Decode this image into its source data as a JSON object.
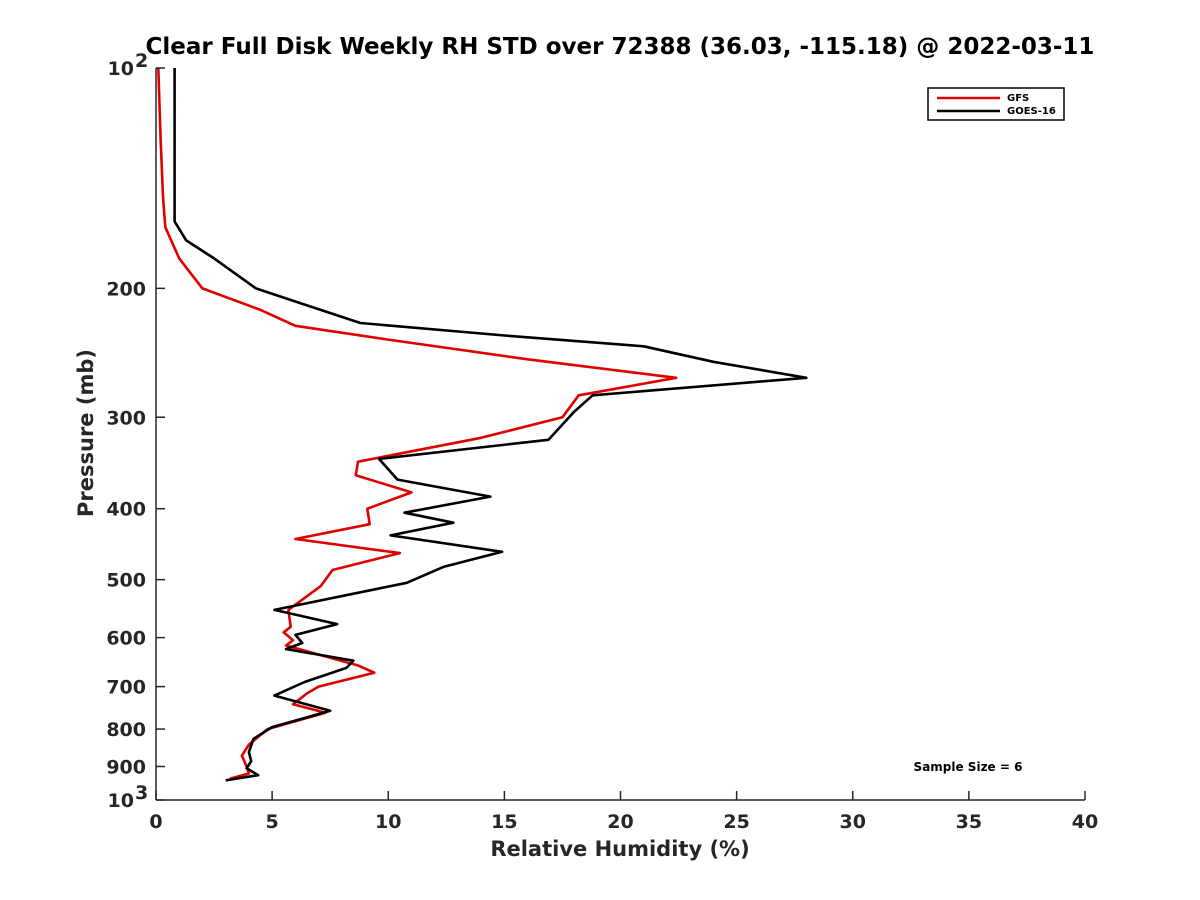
{
  "chart_data": {
    "type": "line",
    "title": "Clear Full Disk Weekly RH STD over 72388 (36.03, -115.18) @ 2022-03-11",
    "xlabel": "Relative Humidity (%)",
    "ylabel": "Pressure (mb)",
    "xlim": [
      0,
      40
    ],
    "ylim": [
      100,
      1000
    ],
    "y_scale": "log",
    "y_reversed": true,
    "x_ticks": [
      "0",
      "5",
      "10",
      "15",
      "20",
      "25",
      "30",
      "35",
      "40"
    ],
    "y_ticks": [
      {
        "value": 100,
        "label": "10",
        "sup": "2"
      },
      {
        "value": 200,
        "label": "200"
      },
      {
        "value": 300,
        "label": "300"
      },
      {
        "value": 400,
        "label": "400"
      },
      {
        "value": 500,
        "label": "500"
      },
      {
        "value": 600,
        "label": "600"
      },
      {
        "value": 700,
        "label": "700"
      },
      {
        "value": 800,
        "label": "800"
      },
      {
        "value": 900,
        "label": "900"
      },
      {
        "value": 1000,
        "label": "10",
        "sup": "3"
      }
    ],
    "legend_position": "top-right",
    "grid": false,
    "annotation": "Sample Size = 6",
    "series": [
      {
        "name": "GFS",
        "color": "#e00000",
        "points": [
          [
            0.1,
            100
          ],
          [
            0.2,
            125
          ],
          [
            0.3,
            150
          ],
          [
            0.4,
            165
          ],
          [
            1.0,
            182
          ],
          [
            2.0,
            200
          ],
          [
            4.5,
            214
          ],
          [
            6.0,
            225
          ],
          [
            10.0,
            235
          ],
          [
            16.0,
            250
          ],
          [
            22.4,
            265
          ],
          [
            18.2,
            280
          ],
          [
            17.5,
            300
          ],
          [
            14.0,
            320
          ],
          [
            8.7,
            345
          ],
          [
            8.6,
            360
          ],
          [
            11.0,
            380
          ],
          [
            9.1,
            400
          ],
          [
            9.2,
            420
          ],
          [
            6.0,
            440
          ],
          [
            10.5,
            460
          ],
          [
            7.6,
            485
          ],
          [
            7.1,
            510
          ],
          [
            5.7,
            550
          ],
          [
            5.8,
            580
          ],
          [
            5.5,
            590
          ],
          [
            5.9,
            605
          ],
          [
            5.6,
            615
          ],
          [
            8.7,
            655
          ],
          [
            9.4,
            670
          ],
          [
            7.0,
            700
          ],
          [
            6.5,
            715
          ],
          [
            5.9,
            740
          ],
          [
            7.3,
            760
          ],
          [
            4.8,
            800
          ],
          [
            4.0,
            840
          ],
          [
            3.7,
            870
          ],
          [
            3.9,
            900
          ],
          [
            4.0,
            920
          ],
          [
            3.2,
            935
          ]
        ]
      },
      {
        "name": "GOES-16",
        "color": "#000000",
        "points": [
          [
            0.8,
            100
          ],
          [
            0.8,
            125
          ],
          [
            0.8,
            150
          ],
          [
            0.8,
            162
          ],
          [
            1.3,
            172
          ],
          [
            2.5,
            182
          ],
          [
            4.3,
            200
          ],
          [
            6.5,
            211
          ],
          [
            8.8,
            223
          ],
          [
            15.0,
            232
          ],
          [
            21.0,
            240
          ],
          [
            24.0,
            252
          ],
          [
            28.0,
            265
          ],
          [
            18.8,
            280
          ],
          [
            18.0,
            295
          ],
          [
            16.9,
            322
          ],
          [
            9.6,
            342
          ],
          [
            10.4,
            365
          ],
          [
            14.4,
            385
          ],
          [
            10.7,
            405
          ],
          [
            12.8,
            418
          ],
          [
            10.1,
            435
          ],
          [
            14.9,
            458
          ],
          [
            12.4,
            480
          ],
          [
            10.8,
            505
          ],
          [
            5.1,
            550
          ],
          [
            7.8,
            575
          ],
          [
            6.0,
            595
          ],
          [
            6.3,
            610
          ],
          [
            5.6,
            622
          ],
          [
            8.5,
            645
          ],
          [
            8.2,
            660
          ],
          [
            6.4,
            690
          ],
          [
            5.1,
            720
          ],
          [
            7.5,
            755
          ],
          [
            5.0,
            795
          ],
          [
            4.2,
            825
          ],
          [
            4.0,
            860
          ],
          [
            4.1,
            885
          ],
          [
            3.9,
            905
          ],
          [
            4.4,
            925
          ],
          [
            3.0,
            940
          ]
        ]
      }
    ]
  }
}
